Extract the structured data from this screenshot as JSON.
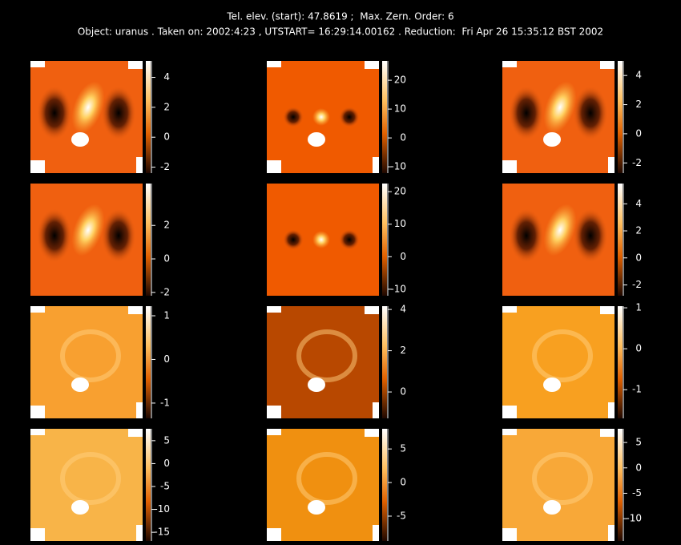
{
  "header": {
    "line1": "Tel. elev. (start): 47.8619 ;  Max. Zern. Order: 6",
    "line2": "Object: uranus . Taken on: 2002:4:23 , UTSTART= 16:29:14.00162 . Reduction:  Fri Apr 26 15:35:12 BST 2002"
  },
  "panels": [
    {
      "colorbar_range": [
        -2.4,
        5.1
      ],
      "colorbar_ticks": [
        -2,
        0,
        2,
        4
      ]
    },
    {
      "colorbar_range": [
        -12.2,
        26.7
      ],
      "colorbar_ticks": [
        -10,
        0,
        10,
        20
      ]
    },
    {
      "colorbar_range": [
        -2.7,
        5.0
      ],
      "colorbar_ticks": [
        -2,
        0,
        2,
        4
      ]
    },
    {
      "colorbar_range": [
        -2.2,
        4.5
      ],
      "colorbar_ticks": [
        -2,
        0,
        2
      ]
    },
    {
      "colorbar_range": [
        -12.0,
        22.5
      ],
      "colorbar_ticks": [
        -10,
        0,
        10,
        20
      ]
    },
    {
      "colorbar_range": [
        -2.8,
        5.5
      ],
      "colorbar_ticks": [
        -2,
        0,
        2,
        4
      ]
    },
    {
      "colorbar_range": [
        -1.35,
        1.22
      ],
      "colorbar_ticks": [
        -1,
        0,
        1
      ]
    },
    {
      "colorbar_range": [
        -1.28,
        4.16
      ],
      "colorbar_ticks": [
        0,
        2,
        4
      ]
    },
    {
      "colorbar_range": [
        -1.7,
        1.04
      ],
      "colorbar_ticks": [
        -1,
        0,
        1
      ]
    },
    {
      "colorbar_range": [
        -16.9,
        7.6
      ],
      "colorbar_ticks": [
        -15,
        -10,
        -5,
        0,
        5
      ]
    },
    {
      "colorbar_range": [
        -8.7,
        8.0
      ],
      "colorbar_ticks": [
        -5,
        0,
        5
      ]
    },
    {
      "colorbar_range": [
        -14.4,
        7.7
      ],
      "colorbar_ticks": [
        -10,
        -5,
        0,
        5
      ]
    }
  ]
}
